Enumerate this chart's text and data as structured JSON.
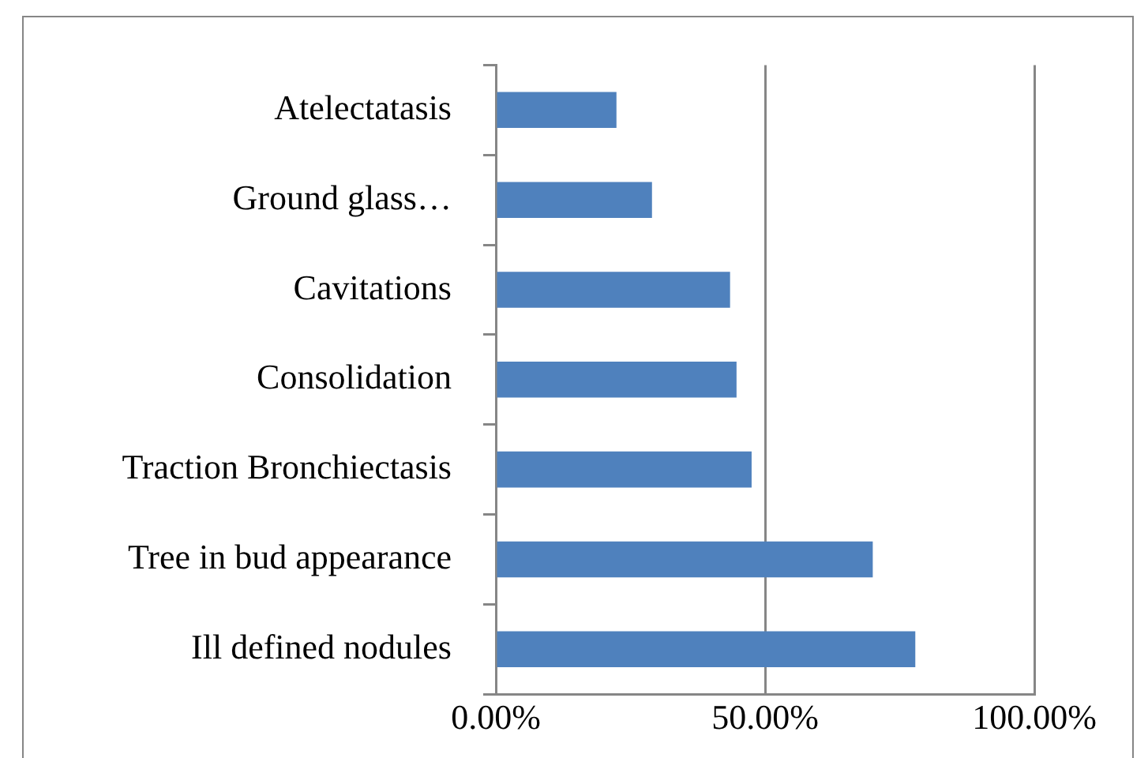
{
  "chart_data": {
    "type": "bar",
    "orientation": "horizontal",
    "categories": [
      "Atelectatasis",
      "Ground glass…",
      "Cavitations",
      "Consolidation",
      "Traction Bronchiectasis",
      "Tree in bud appearance",
      "Ill defined nodules"
    ],
    "values": [
      22.4,
      29.0,
      43.5,
      44.7,
      47.5,
      70.0,
      77.9
    ],
    "color": "#4f81bd",
    "xlim": [
      0,
      100
    ],
    "xticks": [
      {
        "value": 0,
        "label": "0.00%"
      },
      {
        "value": 50,
        "label": "50.00%"
      },
      {
        "value": 100,
        "label": "100.00%"
      }
    ],
    "grid": "x",
    "legend": false
  }
}
